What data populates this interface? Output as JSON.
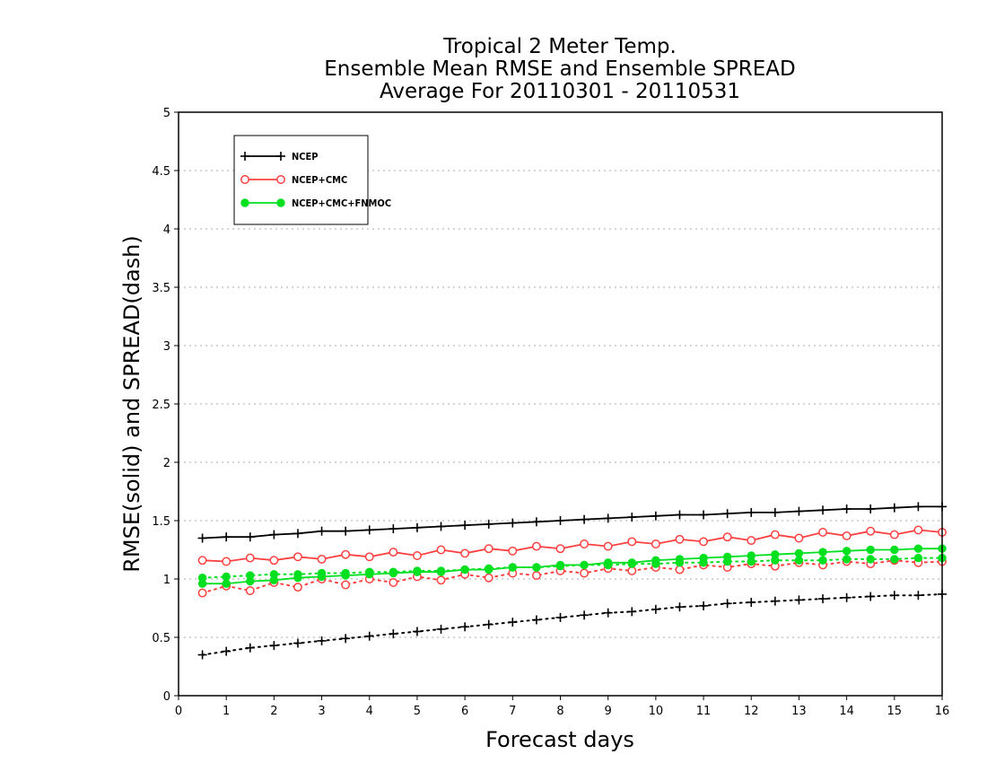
{
  "chart_data": {
    "type": "line",
    "title_lines": [
      "Tropical 2 Meter Temp.",
      "Ensemble Mean RMSE and Ensemble SPREAD",
      "Average For 20110301 - 20110531"
    ],
    "xlabel": "Forecast days",
    "ylabel": "RMSE(solid) and SPREAD(dash)",
    "xlim": [
      0,
      16
    ],
    "ylim": [
      0,
      5
    ],
    "xticks": [
      "0",
      "1",
      "2",
      "3",
      "4",
      "5",
      "6",
      "7",
      "8",
      "9",
      "10",
      "11",
      "12",
      "13",
      "14",
      "15",
      "16"
    ],
    "yticks": [
      "0",
      "0.5",
      "1",
      "1.5",
      "2",
      "2.5",
      "3",
      "3.5",
      "4",
      "4.5",
      "5"
    ],
    "grid": "horizontal dotted",
    "legend_position": "top-left",
    "x": [
      0.5,
      1,
      1.5,
      2,
      2.5,
      3,
      3.5,
      4,
      4.5,
      5,
      5.5,
      6,
      6.5,
      7,
      7.5,
      8,
      8.5,
      9,
      9.5,
      10,
      10.5,
      11,
      11.5,
      12,
      12.5,
      13,
      13.5,
      14,
      14.5,
      15,
      15.5,
      16
    ],
    "series": [
      {
        "name": "NCEP",
        "color": "#000000",
        "marker": "plus",
        "rmse": [
          1.35,
          1.36,
          1.36,
          1.38,
          1.39,
          1.41,
          1.41,
          1.42,
          1.43,
          1.44,
          1.45,
          1.46,
          1.47,
          1.48,
          1.49,
          1.5,
          1.51,
          1.52,
          1.53,
          1.54,
          1.55,
          1.55,
          1.56,
          1.57,
          1.57,
          1.58,
          1.59,
          1.6,
          1.6,
          1.61,
          1.62,
          1.62
        ],
        "spread": [
          0.35,
          0.38,
          0.41,
          0.43,
          0.45,
          0.47,
          0.49,
          0.51,
          0.53,
          0.55,
          0.57,
          0.59,
          0.61,
          0.63,
          0.65,
          0.67,
          0.69,
          0.71,
          0.72,
          0.74,
          0.76,
          0.77,
          0.79,
          0.8,
          0.81,
          0.82,
          0.83,
          0.84,
          0.85,
          0.86,
          0.86,
          0.87
        ]
      },
      {
        "name": "NCEP+CMC",
        "color": "#ff4040",
        "marker": "open-circle",
        "rmse": [
          1.16,
          1.15,
          1.18,
          1.16,
          1.19,
          1.17,
          1.21,
          1.19,
          1.23,
          1.2,
          1.25,
          1.22,
          1.26,
          1.24,
          1.28,
          1.26,
          1.3,
          1.28,
          1.32,
          1.3,
          1.34,
          1.32,
          1.36,
          1.33,
          1.38,
          1.35,
          1.4,
          1.37,
          1.41,
          1.38,
          1.42,
          1.4
        ],
        "spread": [
          0.88,
          0.94,
          0.9,
          0.97,
          0.93,
          1.0,
          0.95,
          1.0,
          0.97,
          1.02,
          0.99,
          1.04,
          1.01,
          1.05,
          1.03,
          1.07,
          1.05,
          1.09,
          1.07,
          1.1,
          1.08,
          1.12,
          1.1,
          1.13,
          1.11,
          1.14,
          1.12,
          1.15,
          1.13,
          1.16,
          1.14,
          1.15
        ]
      },
      {
        "name": "NCEP+CMC+FNMOC",
        "color": "#00e020",
        "marker": "filled-circle",
        "rmse": [
          0.96,
          0.96,
          0.98,
          0.99,
          1.01,
          1.02,
          1.03,
          1.04,
          1.05,
          1.06,
          1.06,
          1.08,
          1.08,
          1.1,
          1.1,
          1.12,
          1.12,
          1.14,
          1.14,
          1.16,
          1.17,
          1.18,
          1.19,
          1.2,
          1.21,
          1.22,
          1.23,
          1.24,
          1.25,
          1.25,
          1.26,
          1.26
        ]
      },
      {
        "name": "",
        "color": "#00e020",
        "marker": "filled-circle",
        "spread": [
          1.01,
          1.02,
          1.03,
          1.04,
          1.04,
          1.05,
          1.05,
          1.06,
          1.06,
          1.07,
          1.07,
          1.08,
          1.09,
          1.1,
          1.1,
          1.11,
          1.12,
          1.12,
          1.13,
          1.13,
          1.14,
          1.14,
          1.15,
          1.15,
          1.16,
          1.16,
          1.16,
          1.17,
          1.17,
          1.17,
          1.18,
          1.18
        ]
      }
    ]
  }
}
